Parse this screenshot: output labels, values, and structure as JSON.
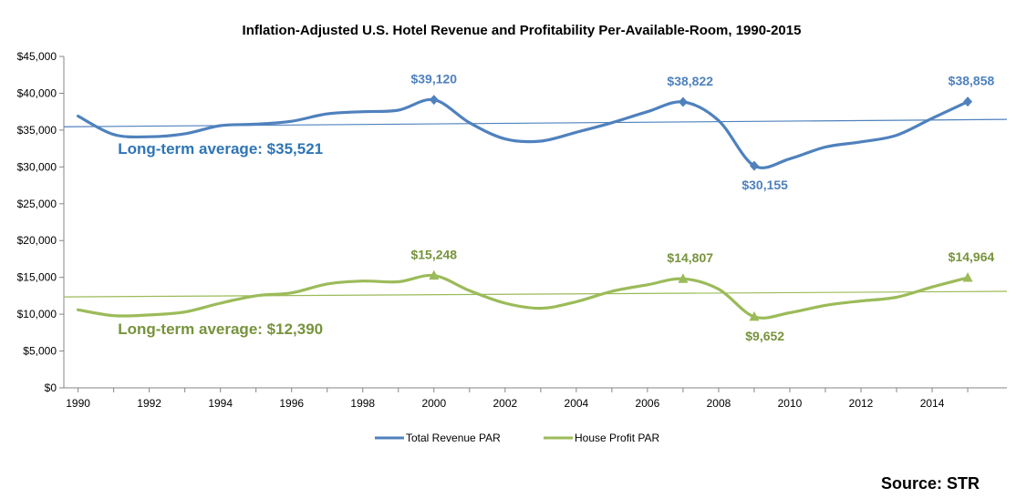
{
  "chart_data": {
    "type": "line",
    "title": "Inflation-Adjusted U.S. Hotel Revenue and Profitability Per-Available-Room, 1990-2015",
    "xlabel": "",
    "ylabel": "",
    "x_ticks": [
      1990,
      1992,
      1994,
      1996,
      1998,
      2000,
      2002,
      2004,
      2006,
      2008,
      2010,
      2012,
      2014
    ],
    "x_tick_labels": [
      "1990",
      "1992",
      "1994",
      "1996",
      "1998",
      "2000",
      "2002",
      "2004",
      "2006",
      "2008",
      "2010",
      "2012",
      "2014"
    ],
    "xlim": [
      1989.6,
      2016.1
    ],
    "y_ticks": [
      0,
      5000,
      10000,
      15000,
      20000,
      25000,
      30000,
      35000,
      40000,
      45000
    ],
    "y_tick_labels": [
      "$0",
      "$5,000",
      "$10,000",
      "$15,000",
      "$20,000",
      "$25,000",
      "$30,000",
      "$35,000",
      "$40,000",
      "$45,000"
    ],
    "ylim": [
      0,
      45000
    ],
    "grid": false,
    "legend_position": "bottom",
    "series": [
      {
        "name": "Total Revenue PAR",
        "color": "#4f81bd",
        "marker": "diamond",
        "x": [
          1990,
          1991,
          1992,
          1993,
          1994,
          1995,
          1996,
          1997,
          1998,
          1999,
          2000,
          2001,
          2002,
          2003,
          2004,
          2005,
          2006,
          2007,
          2008,
          2009,
          2010,
          2011,
          2012,
          2013,
          2014,
          2015
        ],
        "y": [
          36900,
          34400,
          34100,
          34500,
          35600,
          35800,
          36200,
          37200,
          37500,
          37700,
          39120,
          36000,
          33800,
          33500,
          34700,
          36000,
          37500,
          38822,
          36300,
          30155,
          31100,
          32700,
          33400,
          34300,
          36600,
          38858
        ]
      },
      {
        "name": "House Profit PAR",
        "color": "#9bbb59",
        "marker": "triangle",
        "x": [
          1990,
          1991,
          1992,
          1993,
          1994,
          1995,
          1996,
          1997,
          1998,
          1999,
          2000,
          2001,
          2002,
          2003,
          2004,
          2005,
          2006,
          2007,
          2008,
          2009,
          2010,
          2011,
          2012,
          2013,
          2014,
          2015
        ],
        "y": [
          10600,
          9800,
          9900,
          10300,
          11500,
          12500,
          12900,
          14100,
          14500,
          14400,
          15248,
          13200,
          11500,
          10800,
          11700,
          13100,
          14000,
          14807,
          13400,
          9652,
          10200,
          11200,
          11800,
          12300,
          13700,
          14964
        ]
      }
    ],
    "trendlines": [
      {
        "series": "Total Revenue PAR",
        "color": "#4f81bd",
        "x": [
          1989.6,
          2016.1
        ],
        "y": [
          35450,
          36450
        ]
      },
      {
        "series": "House Profit PAR",
        "color": "#9bbb59",
        "x": [
          1989.6,
          2016.1
        ],
        "y": [
          12350,
          13100
        ]
      }
    ],
    "annotations": [
      {
        "text": "$39,120",
        "x": 2000,
        "y": 39120,
        "color": "#4f81bd",
        "pos": "above"
      },
      {
        "text": "$38,822",
        "x": 2007.2,
        "y": 38822,
        "color": "#4f81bd",
        "pos": "above"
      },
      {
        "text": "$38,858",
        "x": 2015.1,
        "y": 38858,
        "color": "#4f81bd",
        "pos": "above"
      },
      {
        "text": "$30,155",
        "x": 2009.3,
        "y": 30155,
        "color": "#4f81bd",
        "pos": "below"
      },
      {
        "text": "$15,248",
        "x": 2000,
        "y": 15248,
        "color": "#77933c",
        "pos": "above"
      },
      {
        "text": "$14,807",
        "x": 2007.2,
        "y": 14807,
        "color": "#77933c",
        "pos": "above"
      },
      {
        "text": "$14,964",
        "x": 2015.1,
        "y": 14964,
        "color": "#77933c",
        "pos": "above"
      },
      {
        "text": "$9,652",
        "x": 2009.3,
        "y": 9652,
        "color": "#77933c",
        "pos": "below"
      },
      {
        "text": "Long-term average: $35,521",
        "x": 1994,
        "y": 31800,
        "color": "#2e75b6",
        "pos": "label"
      },
      {
        "text": "Long-term average: $12,390",
        "x": 1994,
        "y": 7300,
        "color": "#77933c",
        "pos": "label"
      }
    ],
    "source": "Source: STR"
  }
}
